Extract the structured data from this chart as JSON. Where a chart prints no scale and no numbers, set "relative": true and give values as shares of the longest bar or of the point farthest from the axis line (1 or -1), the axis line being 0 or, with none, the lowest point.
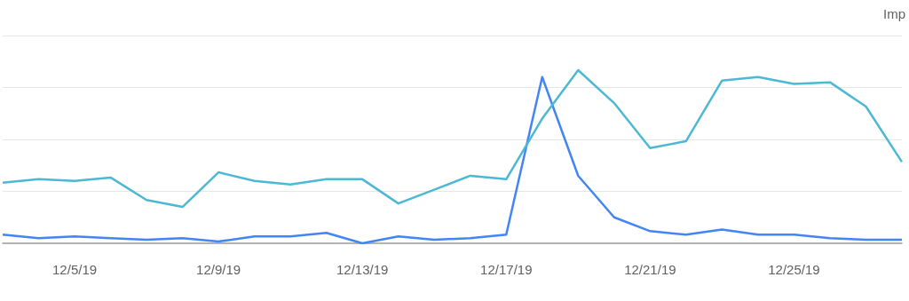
{
  "chart_data": {
    "type": "line",
    "relative": true,
    "categories": [
      null,
      null,
      "12/5/19",
      null,
      null,
      null,
      "12/9/19",
      null,
      null,
      null,
      "12/13/19",
      null,
      null,
      null,
      "12/17/19",
      null,
      null,
      null,
      "12/21/19",
      null,
      null,
      null,
      "12/25/19",
      null,
      null,
      null
    ],
    "series": [
      {
        "color": "#4285f4",
        "values": [
          0.05,
          0.03,
          0.04,
          0.03,
          0.02,
          0.03,
          0.01,
          0.04,
          0.04,
          0.06,
          0,
          0.04,
          0.02,
          0.03,
          0.05,
          0.96,
          0.39,
          0.15,
          0.07,
          0.05,
          0.08,
          0.05,
          0.05,
          0.03,
          0.02,
          0.02
        ]
      },
      {
        "color": "#4db8d4",
        "values": [
          0.35,
          0.37,
          0.36,
          0.38,
          0.25,
          0.21,
          0.41,
          0.36,
          0.34,
          0.37,
          0.37,
          0.23,
          0.31,
          0.39,
          0.37,
          0.72,
          1,
          0.81,
          0.55,
          0.59,
          0.94,
          0.96,
          0.92,
          0.93,
          0.79,
          0.47
        ]
      }
    ],
    "annotations": [
      "Imp"
    ],
    "grid": "y",
    "marker": "none",
    "line_style": "solid"
  }
}
